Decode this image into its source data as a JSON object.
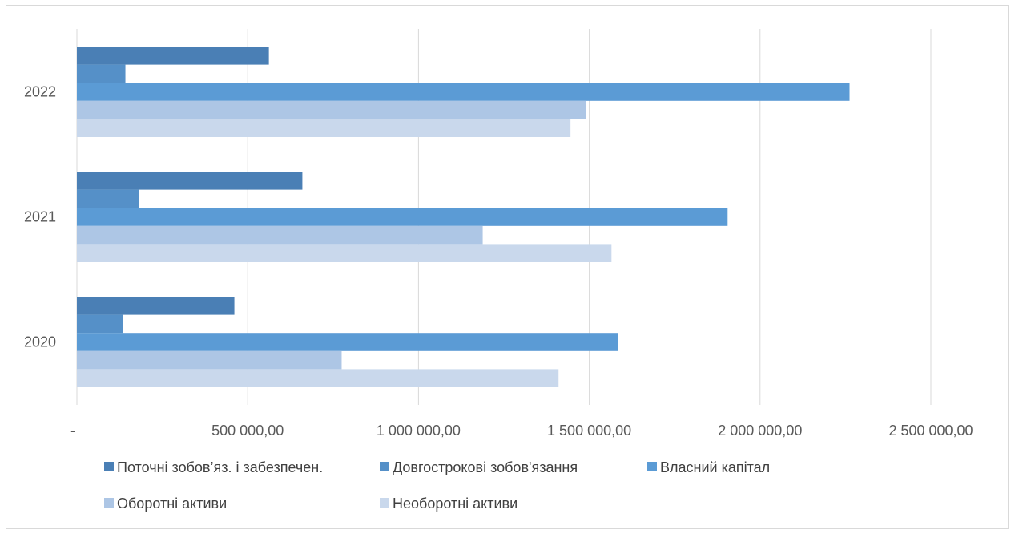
{
  "chart_data": {
    "type": "bar",
    "orientation": "horizontal",
    "title": "",
    "xlabel": "",
    "ylabel": "",
    "categories": [
      "2020",
      "2021",
      "2022"
    ],
    "x_ticks": [
      "-",
      "500 000,00",
      "1 000 000,00",
      "1 500 000,00",
      "2 000 000,00",
      "2 500 000,00"
    ],
    "xlim": [
      0,
      2500000
    ],
    "grid": true,
    "legend_position": "bottom",
    "series": [
      {
        "name": "Поточні зобов’яз. і забезпечен.",
        "color": "#4a7fb5",
        "values": [
          461000,
          660000,
          562000
        ]
      },
      {
        "name": "Довгострокові зобов'язання",
        "color": "#5590c8",
        "values": [
          136000,
          182000,
          142000
        ]
      },
      {
        "name": "Власний капітал",
        "color": "#5b9bd5",
        "values": [
          1585000,
          1905000,
          2262000
        ]
      },
      {
        "name": "Оборотні активи",
        "color": "#adc6e5",
        "values": [
          775000,
          1188000,
          1490000
        ]
      },
      {
        "name": "Необоротні активи",
        "color": "#c9d8ec",
        "values": [
          1410000,
          1565000,
          1445000
        ]
      }
    ]
  }
}
